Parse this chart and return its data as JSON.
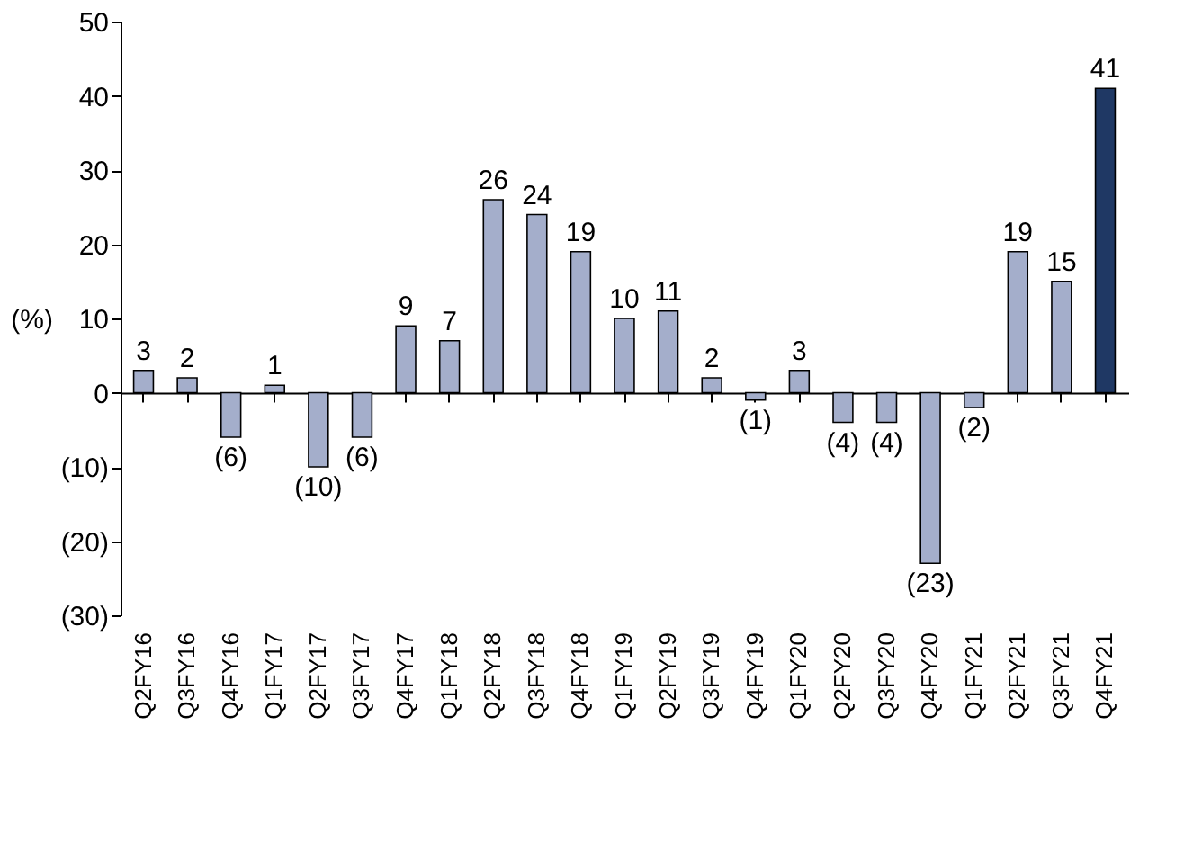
{
  "chart_data": {
    "type": "bar",
    "ylabel": "(%)",
    "categories": [
      "Q2FY16",
      "Q3FY16",
      "Q4FY16",
      "Q1FY17",
      "Q2FY17",
      "Q3FY17",
      "Q4FY17",
      "Q1FY18",
      "Q2FY18",
      "Q3FY18",
      "Q4FY18",
      "Q1FY19",
      "Q2FY19",
      "Q3FY19",
      "Q4FY19",
      "Q1FY20",
      "Q2FY20",
      "Q3FY20",
      "Q4FY20",
      "Q1FY21",
      "Q2FY21",
      "Q3FY21",
      "Q4FY21"
    ],
    "values": [
      3,
      2,
      -6,
      1,
      -10,
      -6,
      9,
      7,
      26,
      24,
      19,
      10,
      11,
      2,
      -1,
      3,
      -4,
      -4,
      -23,
      -2,
      19,
      15,
      41
    ],
    "value_labels": [
      "3",
      "2",
      "(6)",
      "1",
      "(10)",
      "(6)",
      "9",
      "7",
      "26",
      "24",
      "19",
      "10",
      "11",
      "2",
      "(1)",
      "3",
      "(4)",
      "(4)",
      "(23)",
      "(2)",
      "19",
      "15",
      "41"
    ],
    "colors": [
      "#a4aecb",
      "#a4aecb",
      "#a4aecb",
      "#a4aecb",
      "#a4aecb",
      "#a4aecb",
      "#a4aecb",
      "#a4aecb",
      "#a4aecb",
      "#a4aecb",
      "#a4aecb",
      "#a4aecb",
      "#a4aecb",
      "#a4aecb",
      "#a4aecb",
      "#a4aecb",
      "#a4aecb",
      "#a4aecb",
      "#a4aecb",
      "#a4aecb",
      "#a4aecb",
      "#a4aecb",
      "#1f3864"
    ],
    "ylim": [
      -30,
      50
    ],
    "yticks": [
      {
        "value": -30,
        "label": "(30)"
      },
      {
        "value": -20,
        "label": "(20)"
      },
      {
        "value": -10,
        "label": "(10)"
      },
      0,
      10,
      20,
      30,
      40,
      50
    ]
  }
}
